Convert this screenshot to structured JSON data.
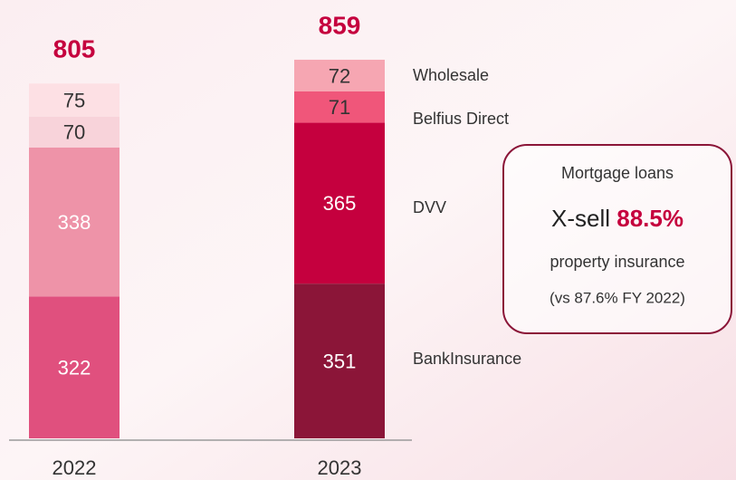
{
  "chart_data": {
    "type": "stacked_bar",
    "categories": [
      "2022",
      "2023"
    ],
    "totals": [
      805,
      859
    ],
    "series": [
      {
        "name": "BankInsurance",
        "colors": [
          "#e0507e",
          "#8b1538"
        ],
        "values": [
          322,
          351
        ]
      },
      {
        "name": "DVV",
        "colors": [
          "#ee93a8",
          "#c5003e"
        ],
        "values": [
          338,
          365
        ]
      },
      {
        "name": "Belfius Direct",
        "colors": [
          "#f8d3da",
          "#f0567a"
        ],
        "values": [
          70,
          71
        ]
      },
      {
        "name": "Wholesale",
        "colors": [
          "#fde0e4",
          "#f6a6b2"
        ],
        "values": [
          75,
          72
        ]
      }
    ],
    "ylim": [
      0,
      900
    ],
    "annotation": {
      "title": "Mortgage loans",
      "xsell_label": "X-sell",
      "xsell_value": "88.5%",
      "line1": "property insurance",
      "line2": "(vs 87.6% FY 2022)"
    }
  }
}
